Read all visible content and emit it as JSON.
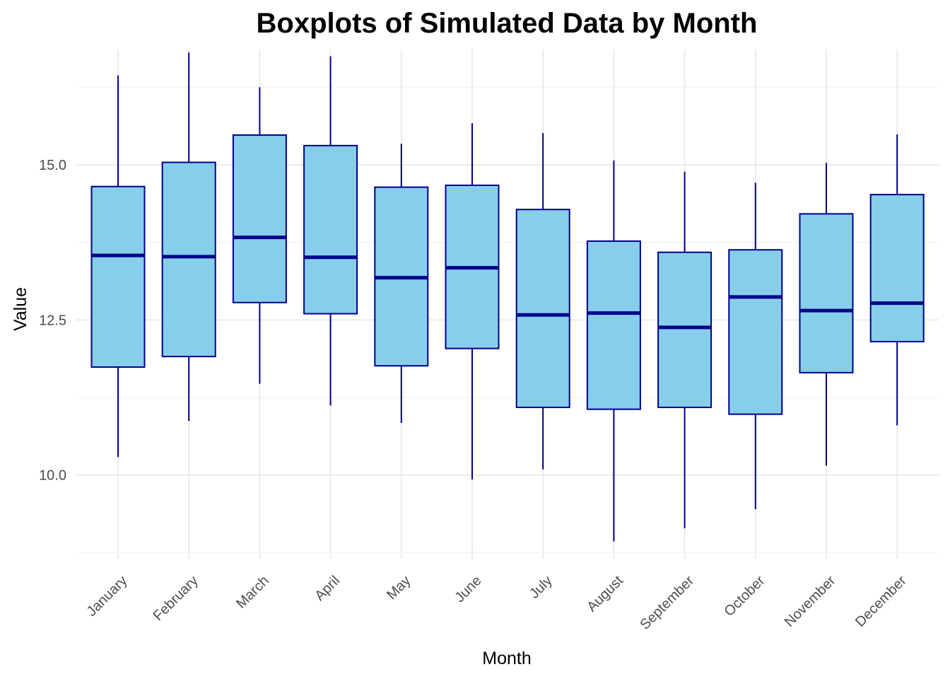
{
  "chart_data": {
    "type": "boxplot",
    "title": "Boxplots of Simulated Data by Month",
    "xlabel": "Month",
    "ylabel": "Value",
    "ylim": [
      8.65,
      16.95
    ],
    "y_ticks": [
      10.0,
      12.5,
      15.0
    ],
    "y_tick_labels": [
      "10.0",
      "12.5",
      "15.0"
    ],
    "y_minor_ticks": [
      8.75,
      11.25,
      13.75,
      16.25
    ],
    "grid": true,
    "legend": "none",
    "colors": {
      "box_fill": "#87CEEB",
      "box_stroke": "#00008B",
      "grid": "#EBEBEB"
    },
    "categories": [
      "January",
      "February",
      "March",
      "April",
      "May",
      "June",
      "July",
      "August",
      "September",
      "October",
      "November",
      "December"
    ],
    "boxes": [
      {
        "month": "January",
        "min": 10.29,
        "q1": 11.74,
        "median": 13.54,
        "q3": 14.65,
        "max": 16.44
      },
      {
        "month": "February",
        "min": 10.87,
        "q1": 11.91,
        "median": 13.52,
        "q3": 15.04,
        "max": 16.81
      },
      {
        "month": "March",
        "min": 11.47,
        "q1": 12.78,
        "median": 13.83,
        "q3": 15.48,
        "max": 16.25
      },
      {
        "month": "April",
        "min": 11.12,
        "q1": 12.6,
        "median": 13.51,
        "q3": 15.31,
        "max": 16.75
      },
      {
        "month": "May",
        "min": 10.84,
        "q1": 11.76,
        "median": 13.18,
        "q3": 14.64,
        "max": 15.34
      },
      {
        "month": "June",
        "min": 9.93,
        "q1": 12.04,
        "median": 13.34,
        "q3": 14.67,
        "max": 15.67
      },
      {
        "month": "July",
        "min": 10.09,
        "q1": 11.09,
        "median": 12.58,
        "q3": 14.28,
        "max": 15.51
      },
      {
        "month": "August",
        "min": 8.93,
        "q1": 11.06,
        "median": 12.61,
        "q3": 13.77,
        "max": 15.07
      },
      {
        "month": "September",
        "min": 9.14,
        "q1": 11.09,
        "median": 12.38,
        "q3": 13.59,
        "max": 14.89
      },
      {
        "month": "October",
        "min": 9.45,
        "q1": 10.98,
        "median": 12.87,
        "q3": 13.63,
        "max": 14.71
      },
      {
        "month": "November",
        "min": 10.15,
        "q1": 11.65,
        "median": 12.65,
        "q3": 14.21,
        "max": 15.03
      },
      {
        "month": "December",
        "min": 10.8,
        "q1": 12.15,
        "median": 12.77,
        "q3": 14.52,
        "max": 15.49
      }
    ]
  }
}
